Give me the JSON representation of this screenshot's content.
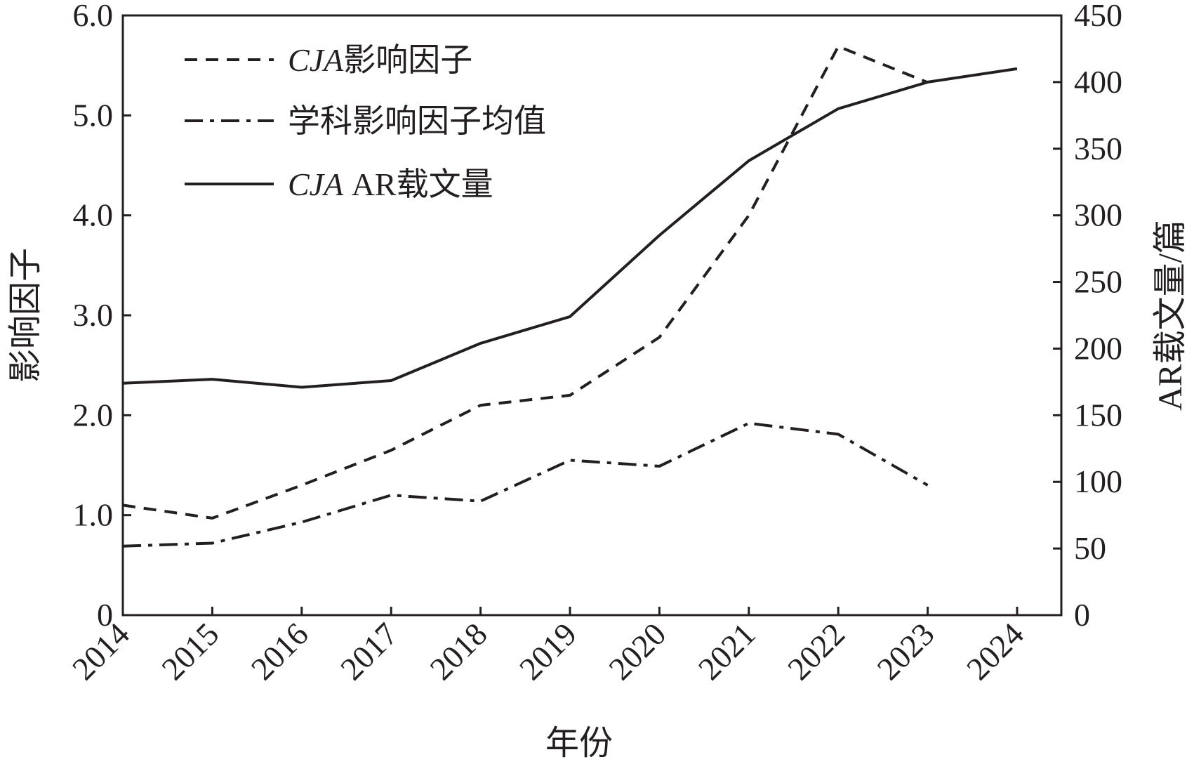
{
  "chart_data": {
    "type": "line",
    "xlabel": "年份",
    "ylabel_left": "影响因子",
    "ylabel_right": "AR载文量/篇",
    "x": [
      "2014",
      "2015",
      "2016",
      "2017",
      "2018",
      "2019",
      "2020",
      "2021",
      "2022",
      "2023",
      "2024"
    ],
    "ylim_left": [
      0,
      6.0
    ],
    "yticks_left": [
      "0",
      "1.0",
      "2.0",
      "3.0",
      "4.0",
      "5.0",
      "6.0"
    ],
    "ylim_right": [
      0,
      450
    ],
    "yticks_right": [
      "0",
      "50",
      "100",
      "150",
      "200",
      "250",
      "300",
      "350",
      "400",
      "450"
    ],
    "grid": false,
    "legend_position": "top-left",
    "series": [
      {
        "legend_italic": "CJA",
        "legend_rest": "影响因子",
        "axis": "left",
        "style": "dashed",
        "values": [
          1.1,
          0.97,
          1.3,
          1.65,
          2.1,
          2.2,
          2.78,
          4.0,
          5.69,
          5.33,
          null
        ]
      },
      {
        "legend_italic": "",
        "legend_rest": "学科影响因子均值",
        "axis": "left",
        "style": "dashdot",
        "values": [
          0.69,
          0.72,
          0.93,
          1.2,
          1.14,
          1.55,
          1.49,
          1.92,
          1.81,
          1.3,
          null
        ]
      },
      {
        "legend_italic": "CJA",
        "legend_rest": " AR载文量",
        "axis": "right",
        "style": "solid",
        "values": [
          174,
          177,
          171,
          176,
          204,
          224,
          285,
          341,
          380,
          400,
          410
        ]
      }
    ]
  },
  "colors": {
    "ink": "#231f20"
  }
}
